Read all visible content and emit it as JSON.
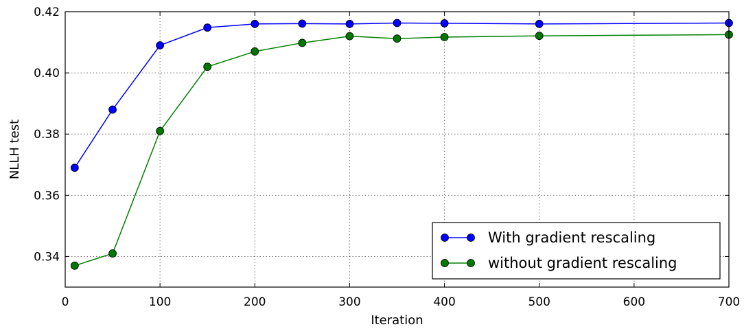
{
  "chart_data": {
    "type": "line",
    "title": "",
    "xlabel": "Iteration",
    "ylabel": "NLLH test",
    "xlim": [
      0,
      700
    ],
    "ylim": [
      0.33,
      0.42
    ],
    "xticks": [
      0,
      100,
      200,
      300,
      400,
      500,
      600,
      700
    ],
    "yticks": [
      0.34,
      0.36,
      0.38,
      0.4,
      0.42
    ],
    "xtick_labels": [
      "0",
      "100",
      "200",
      "300",
      "400",
      "500",
      "600",
      "700"
    ],
    "ytick_labels": [
      "0.34",
      "0.36",
      "0.38",
      "0.40",
      "0.42"
    ],
    "grid": true,
    "legend_position": "bottom-right",
    "x": [
      10,
      50,
      100,
      150,
      200,
      250,
      300,
      350,
      400,
      500,
      700
    ],
    "series": [
      {
        "name": "With gradient rescaling",
        "color": "#0000ff",
        "marker_color": "#0000ff",
        "values": [
          0.369,
          0.388,
          0.409,
          0.4148,
          0.416,
          0.4161,
          0.416,
          0.4163,
          0.4162,
          0.416,
          0.4163
        ]
      },
      {
        "name": "without gradient rescaling",
        "color": "#008000",
        "marker_color": "#007700",
        "values": [
          0.337,
          0.341,
          0.381,
          0.402,
          0.407,
          0.4098,
          0.412,
          0.4112,
          0.4117,
          0.4121,
          0.4125
        ]
      }
    ]
  }
}
